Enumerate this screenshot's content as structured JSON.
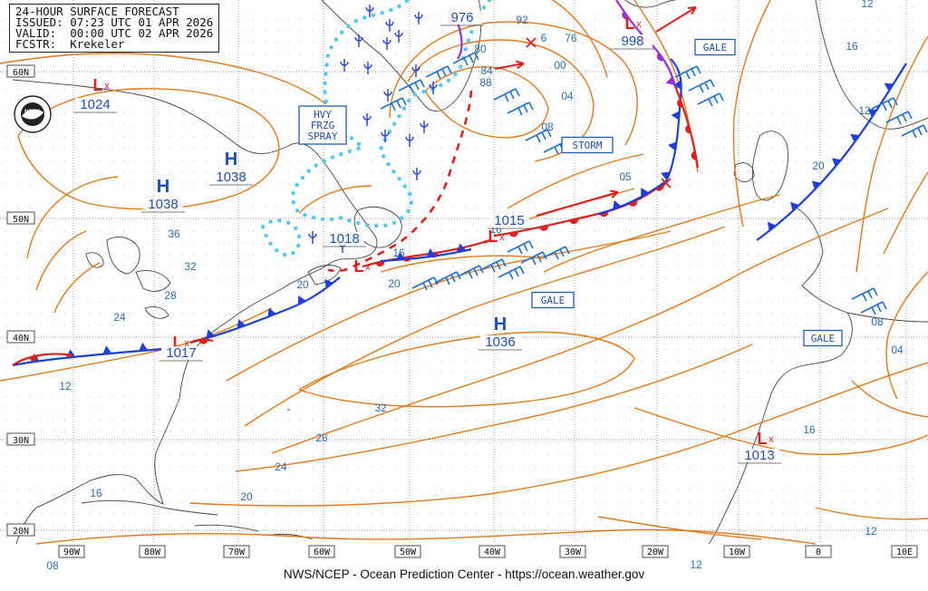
{
  "header": {
    "line1": "24-HOUR SURFACE FORECAST",
    "line2": "ISSUED: 07:23 UTC 01 APR 2026",
    "line3": "VALID:  00:00 UTC 02 APR 2026",
    "line4": "FCSTR:  Krekeler"
  },
  "footer": "NWS/NCEP - Ocean Prediction Center - https://ocean.weather.gov",
  "logo_text": "NOAA",
  "colors": {
    "isobar": "#e07b1c",
    "isobar_label": "#2b6cb0",
    "cold_front": "#1f3fd6",
    "warm_front": "#e01f1f",
    "occluded_front": "#9b2fd0",
    "ice": "#5bc8f0",
    "high_low_text": "#1f4fb0",
    "low_symbol": "#e01f1f",
    "grid": "#777777"
  },
  "grid": {
    "lat_labels": [
      "60N",
      "50N",
      "40N",
      "30N",
      "20N"
    ],
    "lon_labels": [
      "90W",
      "80W",
      "70W",
      "60W",
      "50W",
      "40W",
      "30W",
      "20W",
      "10W",
      "0",
      "10E"
    ]
  },
  "pressure_centers": [
    {
      "type": "L",
      "value": "1024"
    },
    {
      "type": "H",
      "value": "1038"
    },
    {
      "type": "H",
      "value": "1038"
    },
    {
      "type": "L",
      "value": "1018"
    },
    {
      "type": "L",
      "value": "1017"
    },
    {
      "type": "L",
      "value": "1015"
    },
    {
      "type": "H",
      "value": "1036"
    },
    {
      "type": "L",
      "value": "976"
    },
    {
      "type": "L",
      "value": "998"
    },
    {
      "type": "L",
      "value": "1013"
    }
  ],
  "isobar_labels": [
    "36",
    "32",
    "28",
    "24",
    "12",
    "20",
    "16",
    "32",
    "28",
    "24",
    "20",
    "16",
    "08",
    "92",
    "76",
    "00",
    "04",
    "08",
    "80",
    "84",
    "88",
    "05",
    "16",
    "20",
    "12",
    "16",
    "20",
    "16",
    "12",
    "08",
    "04",
    "12",
    "12",
    "6"
  ],
  "warning_boxes": [
    "GALE",
    "STORM",
    "GALE",
    "GALE",
    "HVY\nFRZG\nSPRAY"
  ]
}
